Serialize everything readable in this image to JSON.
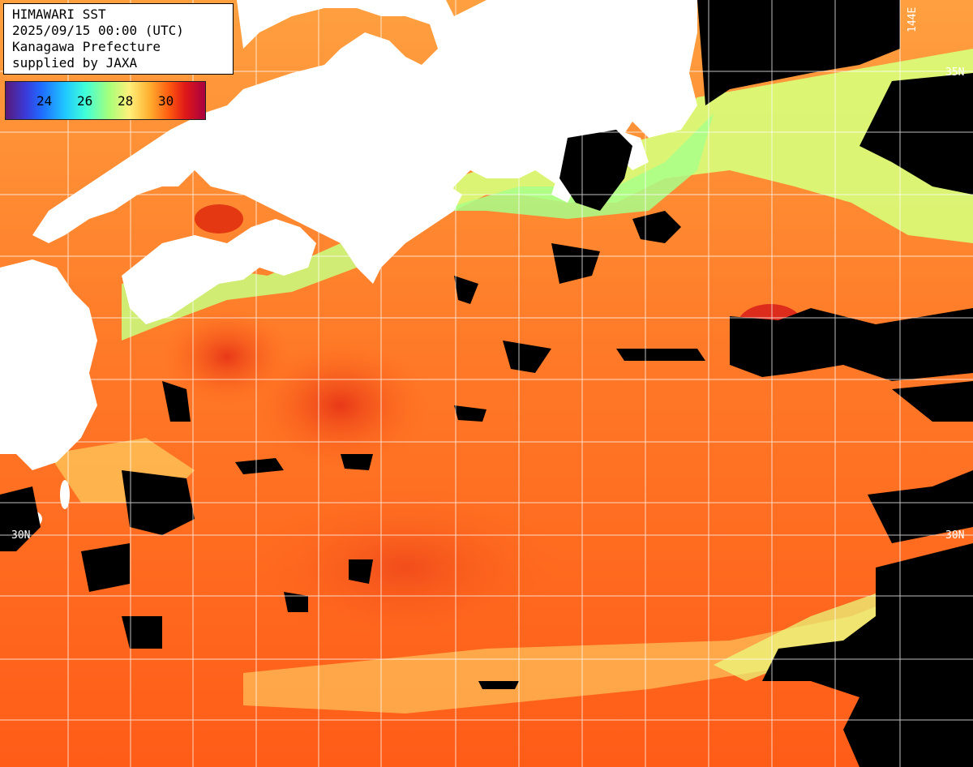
{
  "header": {
    "line1": "HIMAWARI SST",
    "line2": "2025/09/15 00:00 (UTC)",
    "line3": "Kanagawa Prefecture",
    "line4": "supplied by JAXA"
  },
  "colorbar": {
    "ticks": [
      "24",
      "26",
      "28",
      "30"
    ],
    "colors": {
      "min": "#5a1a7a",
      "cool": "#20c8ff",
      "mid": "#fff07a",
      "warm": "#ff5a10",
      "max": "#a80040"
    }
  },
  "grid_labels": {
    "lat_30n_left": "30N",
    "lat_30n_right": "30N",
    "lat_35n_right": "35N",
    "lon_144e": "144E"
  },
  "map_colors": {
    "land": "#ffffff",
    "cloud_mask": "#000000",
    "sea_base": "#ff6a1a",
    "grid": "#ffffff"
  }
}
